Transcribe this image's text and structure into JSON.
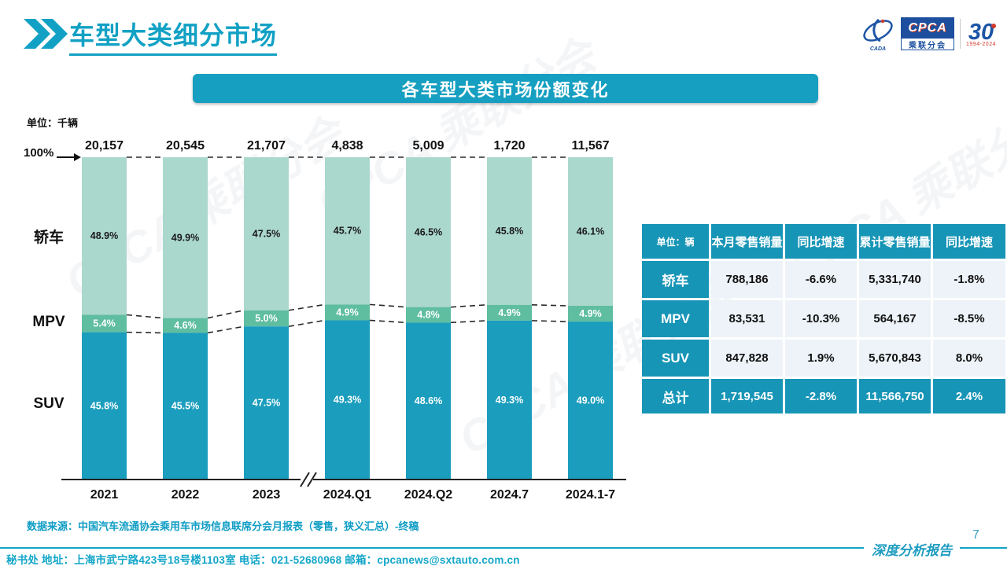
{
  "header": {
    "title": "车型大类细分市场",
    "logo": {
      "cpca": "CPCA",
      "sub": "乘联分会",
      "cada": "CADA",
      "anniversary": "30",
      "years": "1994-2024"
    }
  },
  "banner": {
    "title": "各车型大类市场份额变化"
  },
  "chart_labels": {
    "unit": "单位：千辆",
    "y100": "100%"
  },
  "chart_data": {
    "type": "bar",
    "stacked": true,
    "percent_axis": true,
    "y_max_label": "100%",
    "unit": "千辆",
    "categories": [
      "2021",
      "2022",
      "2023",
      "2024.Q1",
      "2024.Q2",
      "2024.7",
      "2024.1-7"
    ],
    "totals": [
      "20,157",
      "20,545",
      "21,707",
      "4,838",
      "5,009",
      "1,720",
      "11,567"
    ],
    "axis_break_after_index": 2,
    "series": [
      {
        "name": "轿车",
        "color": "#abd8cd",
        "label_color": "#1a1a1a",
        "values": [
          48.9,
          49.9,
          47.5,
          45.7,
          46.5,
          45.8,
          46.1
        ]
      },
      {
        "name": "MPV",
        "color": "#5fbda0",
        "label_color": "#ffffff",
        "values": [
          5.4,
          4.6,
          5.0,
          4.9,
          4.8,
          4.9,
          4.9
        ]
      },
      {
        "name": "SUV",
        "color": "#1b9dbd",
        "label_color": "#ffffff",
        "values": [
          45.8,
          45.5,
          47.5,
          49.3,
          48.6,
          49.3,
          49.0
        ]
      }
    ]
  },
  "table": {
    "header": [
      "单位：辆",
      "本月零售销量",
      "同比增速",
      "累计零售销量",
      "同比增速"
    ],
    "rows": [
      {
        "label": "轿车",
        "cells": [
          "788,186",
          "-6.6%",
          "5,331,740",
          "-1.8%"
        ],
        "is_total": false
      },
      {
        "label": "MPV",
        "cells": [
          "83,531",
          "-10.3%",
          "564,167",
          "-8.5%"
        ],
        "is_total": false
      },
      {
        "label": "SUV",
        "cells": [
          "847,828",
          "1.9%",
          "5,670,843",
          "8.0%"
        ],
        "is_total": false
      },
      {
        "label": "总计",
        "cells": [
          "1,719,545",
          "-2.8%",
          "11,566,750",
          "2.4%"
        ],
        "is_total": true
      }
    ]
  },
  "source_note": "数据来源：中国汽车流通协会乘用车市场信息联席分会月报表（零售，狭义汇总）-终稿",
  "footer": {
    "contact": "秘书处  地址：上海市武宁路423号18号楼1103室 电话：021-52680968   邮箱：cpcanews@sxtauto.com.cn",
    "report_label": "深度分析报告",
    "page_number": "7"
  },
  "watermark": "CPCA 乘联分会",
  "colors": {
    "accent": "#12a1c4",
    "table_header": "#1795b6",
    "sedan": "#abd8cd",
    "mpv": "#5fbda0",
    "suv": "#1b9dbd"
  }
}
